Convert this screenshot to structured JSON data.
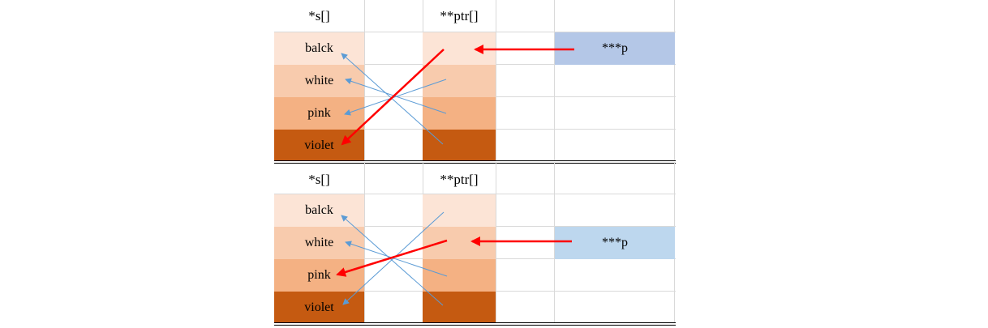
{
  "panels": [
    {
      "id": "top",
      "s_header": "*s[]",
      "ptr_header": "**ptr[]",
      "p_label": "***p",
      "p_color": "#b4c7e7",
      "s_items": [
        "balck",
        "white",
        "pink",
        "violet"
      ],
      "colors": [
        "#fce4d6",
        "#f8cbad",
        "#f4b183",
        "#c55a11"
      ],
      "p_target_ptr_index": 0,
      "red_target_s_index": 3
    },
    {
      "id": "bottom",
      "s_header": "*s[]",
      "ptr_header": "**ptr[]",
      "p_label": "***p",
      "p_color": "#bdd7ee",
      "s_items": [
        "balck",
        "white",
        "pink",
        "violet"
      ],
      "colors": [
        "#fce4d6",
        "#f8cbad",
        "#f4b183",
        "#c55a11"
      ],
      "p_target_ptr_index": 1,
      "red_target_s_index": 2
    }
  ],
  "colors": {
    "red_arrow": "#ff0000",
    "blue_arrow": "#5b9bd5"
  }
}
